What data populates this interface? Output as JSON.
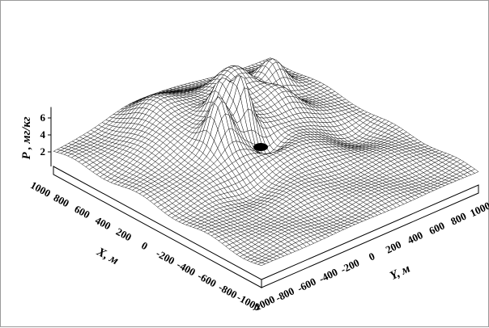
{
  "chart_data": {
    "type": "surface",
    "z_axis": {
      "label": "P , мг/кг",
      "ticks": [
        "2",
        "4",
        "6"
      ]
    },
    "x_axis": {
      "label": "X, м",
      "ticks": [
        "1000",
        "800",
        "600",
        "400",
        "200",
        "0",
        "-200",
        "-400",
        "-600",
        "-800",
        "-1000"
      ]
    },
    "y_axis": {
      "label": "Y, м",
      "ticks": [
        "-1000",
        "-800",
        "-600",
        "-400",
        "-200",
        "0",
        "200",
        "400",
        "600",
        "800",
        "1000"
      ]
    },
    "surface_color": "#ffffff",
    "mesh_color": "#000000",
    "marker_color": "#000000",
    "grid": false
  }
}
